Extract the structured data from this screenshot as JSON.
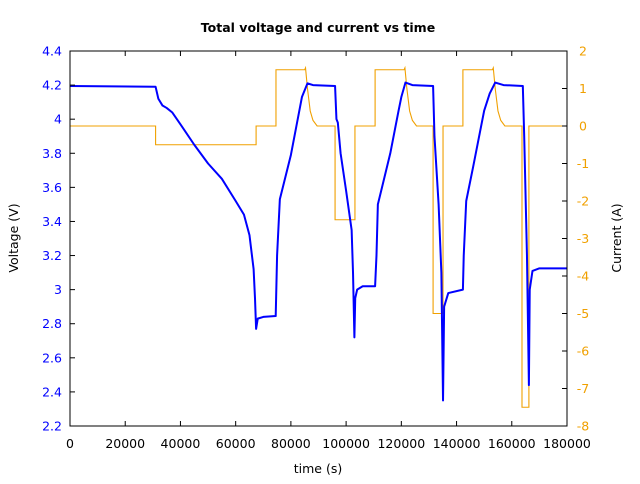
{
  "chart_data": {
    "type": "line",
    "title": "Total voltage and current vs time",
    "xlabel": "time (s)",
    "ylabel": "Voltage (V)",
    "y2label": "Current (A)",
    "xlim": [
      0,
      180000
    ],
    "ylim": [
      2.2,
      4.4
    ],
    "y2lim": [
      -8,
      2
    ],
    "xticks": [
      0,
      20000,
      40000,
      60000,
      80000,
      100000,
      120000,
      140000,
      160000,
      180000
    ],
    "yticks": [
      "2.2",
      "2.4",
      "2.6",
      "2.8",
      "3",
      "3.2",
      "3.4",
      "3.6",
      "3.8",
      "4",
      "4.2",
      "4.4"
    ],
    "y2ticks": [
      -8,
      -7,
      -6,
      -5,
      -4,
      -3,
      -2,
      -1,
      0,
      1,
      2
    ],
    "grid": false,
    "colors": {
      "voltage": "#0000ff",
      "current": "#f0a000"
    },
    "series": [
      {
        "axis": "left",
        "x": [
          0,
          31000,
          32000,
          33500,
          35000,
          37000,
          40000,
          45000,
          50000,
          55000,
          60000,
          63000,
          65000,
          66500,
          67000,
          67400,
          68000,
          70000,
          74500,
          75000,
          76000,
          78000,
          80000,
          82000,
          84000,
          86000,
          88000,
          96000,
          96500,
          97000,
          98000,
          100000,
          102000,
          102500,
          103000,
          103300,
          104000,
          106000,
          110500,
          111000,
          111500,
          113000,
          116000,
          119000,
          120000,
          121500,
          124000,
          131500,
          132000,
          133500,
          134500,
          135100,
          135500,
          137000,
          142300,
          142600,
          143500,
          146000,
          150000,
          152000,
          154000,
          157000,
          164000,
          164500,
          165500,
          166200,
          166500,
          167500,
          170000,
          180000
        ],
        "y": [
          4.195,
          4.19,
          4.12,
          4.08,
          4.066,
          4.04,
          3.97,
          3.85,
          3.74,
          3.65,
          3.52,
          3.44,
          3.32,
          3.12,
          2.95,
          2.77,
          2.83,
          2.84,
          2.845,
          3.2,
          3.53,
          3.66,
          3.79,
          3.96,
          4.13,
          4.21,
          4.2,
          4.195,
          4.0,
          3.98,
          3.8,
          3.58,
          3.35,
          3.1,
          2.72,
          2.95,
          3.0,
          3.02,
          3.02,
          3.2,
          3.5,
          3.6,
          3.8,
          4.05,
          4.13,
          4.215,
          4.2,
          4.195,
          3.9,
          3.5,
          3.1,
          2.35,
          2.9,
          2.98,
          3.0,
          3.2,
          3.52,
          3.72,
          4.05,
          4.15,
          4.215,
          4.2,
          4.195,
          3.9,
          3.2,
          2.44,
          3.0,
          3.11,
          3.125,
          3.125
        ]
      },
      {
        "axis": "right",
        "x": [
          0,
          31000,
          31000,
          67400,
          67400,
          74600,
          74600,
          85000,
          85300,
          86000,
          87000,
          88000,
          89500,
          96000,
          96000,
          103200,
          103200,
          110500,
          110500,
          121000,
          121300,
          122000,
          123000,
          124000,
          125500,
          131500,
          131500,
          135100,
          135100,
          142300,
          142300,
          153000,
          153300,
          154000,
          155000,
          156000,
          157500,
          163700,
          163700,
          166200,
          166200,
          180000
        ],
        "y": [
          0,
          0,
          -0.5,
          -0.5,
          0,
          0,
          1.5,
          1.5,
          1.55,
          1.0,
          0.4,
          0.15,
          0,
          0,
          -2.5,
          -2.5,
          0,
          0,
          1.5,
          1.5,
          1.55,
          1.0,
          0.4,
          0.15,
          0,
          0,
          -5,
          -5,
          0,
          0,
          1.5,
          1.5,
          1.55,
          1.0,
          0.4,
          0.15,
          0,
          0,
          -7.5,
          -7.5,
          0,
          0
        ]
      }
    ]
  }
}
